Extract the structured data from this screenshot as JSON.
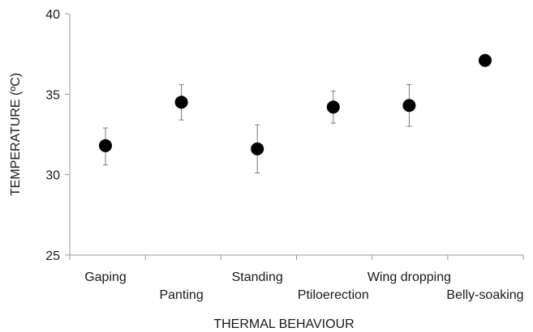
{
  "chart_data": {
    "type": "scatter",
    "xlabel": "THERMAL BEHAVIOUR",
    "ylabel": "TEMPERATURE (ºC)",
    "ylim": [
      25,
      40
    ],
    "yticks": [
      25,
      30,
      35,
      40
    ],
    "grid": false,
    "legend": "none",
    "categories": [
      "Gaping",
      "Panting",
      "Standing",
      "Ptiloerection",
      "Wing dropping",
      "Belly-soaking"
    ],
    "series": [
      {
        "values": [
          31.8,
          34.5,
          31.6,
          34.2,
          34.3,
          37.1
        ],
        "error_low": [
          30.6,
          33.4,
          30.1,
          33.2,
          33.0,
          37.1
        ],
        "error_high": [
          32.9,
          35.6,
          33.1,
          35.2,
          35.6,
          37.1
        ]
      }
    ],
    "colors": {
      "marker": "#000000",
      "axis": "#9a9a9a",
      "errorbar": "#7a7a7a"
    }
  }
}
